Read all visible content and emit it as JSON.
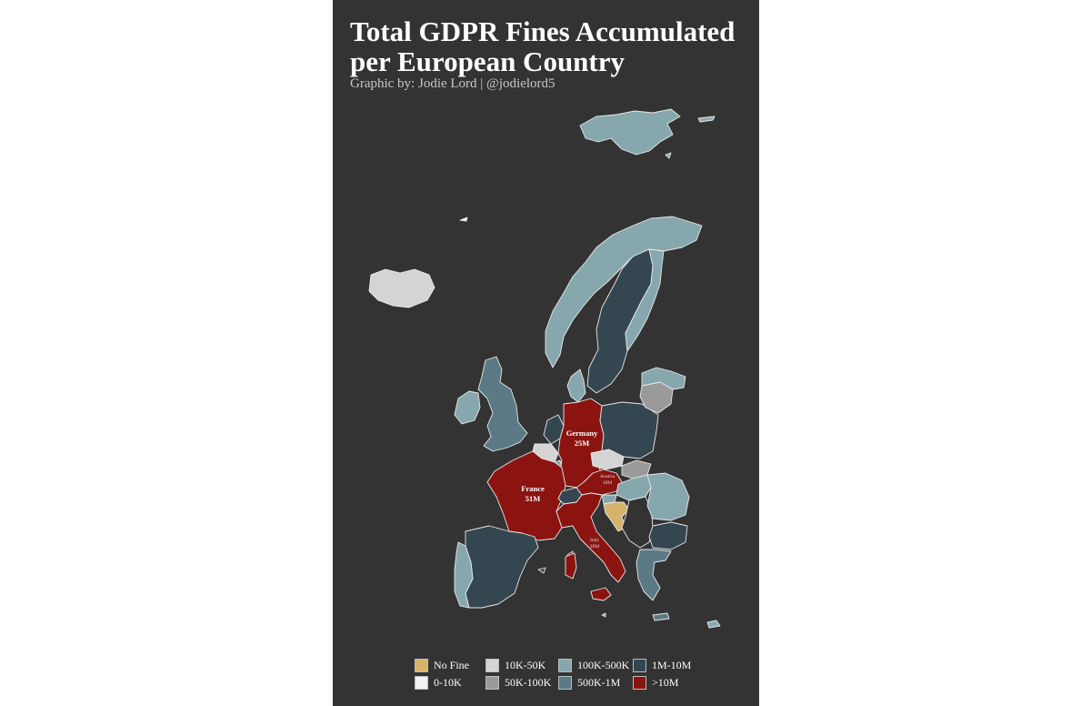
{
  "title_line1": "Total GDPR Fines Accumulated",
  "title_line2": "per European Country",
  "subtitle": "Graphic by: Jodie Lord | @jodielord5",
  "colors": {
    "panel_bg": "#333333",
    "no_fine": "#d6b36b",
    "0_10k": "#f2f2f2",
    "10k_50k": "#d4d4d4",
    "50k_100k": "#9a9a9a",
    "100k_500k": "#86a7ae",
    "500k_1m": "#5b7a85",
    "1m_10m": "#344650",
    "gt_10m": "#8b1410",
    "border": "#e9e9e9"
  },
  "legend": [
    {
      "label": "No Fine",
      "color": "#d6b36b"
    },
    {
      "label": "0-10K",
      "color": "#f2f2f2"
    },
    {
      "label": "10K-50K",
      "color": "#d4d4d4"
    },
    {
      "label": "50K-100K",
      "color": "#9a9a9a"
    },
    {
      "label": "100K-500K",
      "color": "#86a7ae"
    },
    {
      "label": "500K-1M",
      "color": "#5b7a85"
    },
    {
      "label": "1M-10M",
      "color": "#344650"
    },
    {
      "label": ">10M",
      "color": "#8b1410"
    }
  ],
  "labels": {
    "germany_name": "Germany",
    "germany_value": "25M",
    "france_name": "France",
    "france_value": "51M",
    "austria_name": "Austria",
    "austria_value": "18M",
    "italy_name": "Italy",
    "italy_value": "39M"
  },
  "countries": [
    {
      "name": "Iceland",
      "category": "0-10K"
    },
    {
      "name": "Svalbard",
      "category": "100K-500K"
    },
    {
      "name": "Norway",
      "category": "100K-500K"
    },
    {
      "name": "Sweden",
      "category": "1M-10M"
    },
    {
      "name": "Finland",
      "category": "100K-500K"
    },
    {
      "name": "Denmark",
      "category": "100K-500K"
    },
    {
      "name": "United Kingdom",
      "category": "500K-1M"
    },
    {
      "name": "Ireland",
      "category": "100K-500K"
    },
    {
      "name": "Netherlands",
      "category": "1M-10M"
    },
    {
      "name": "Belgium",
      "category": "10K-50K"
    },
    {
      "name": "Luxembourg",
      "category": "100K-500K"
    },
    {
      "name": "Germany",
      "category": ">10M"
    },
    {
      "name": "France",
      "category": ">10M"
    },
    {
      "name": "Switzerland",
      "category": "1M-10M"
    },
    {
      "name": "Austria",
      "category": ">10M"
    },
    {
      "name": "Italy",
      "category": ">10M"
    },
    {
      "name": "Poland",
      "category": "1M-10M"
    },
    {
      "name": "Czechia",
      "category": "10K-50K"
    },
    {
      "name": "Slovakia",
      "category": "50K-100K"
    },
    {
      "name": "Hungary",
      "category": "100K-500K"
    },
    {
      "name": "Slovenia",
      "category": "100K-500K"
    },
    {
      "name": "Croatia",
      "category": "No Fine"
    },
    {
      "name": "Romania",
      "category": "100K-500K"
    },
    {
      "name": "Bulgaria",
      "category": "1M-10M"
    },
    {
      "name": "Greece",
      "category": "500K-1M"
    },
    {
      "name": "Cyprus",
      "category": "100K-500K"
    },
    {
      "name": "Spain",
      "category": "1M-10M"
    },
    {
      "name": "Portugal",
      "category": "100K-500K"
    },
    {
      "name": "Lithuania",
      "category": "50K-100K"
    },
    {
      "name": "Latvia",
      "category": "100K-500K"
    }
  ]
}
